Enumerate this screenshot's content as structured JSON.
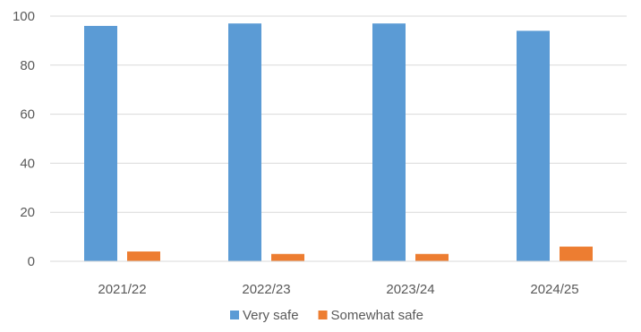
{
  "chart_data": {
    "type": "bar",
    "categories": [
      "2021/22",
      "2022/23",
      "2023/24",
      "2024/25"
    ],
    "series": [
      {
        "name": "Very safe",
        "values": [
          96,
          97,
          97,
          94
        ],
        "color": "#5b9bd5"
      },
      {
        "name": "Somewhat safe",
        "values": [
          4,
          3,
          3,
          6
        ],
        "color": "#ed7d31"
      }
    ],
    "ylim": [
      0,
      100
    ],
    "yticks": [
      0,
      20,
      40,
      60,
      80,
      100
    ],
    "grid": true,
    "legend": "bottom-center",
    "title": "",
    "xlabel": "",
    "ylabel": ""
  }
}
